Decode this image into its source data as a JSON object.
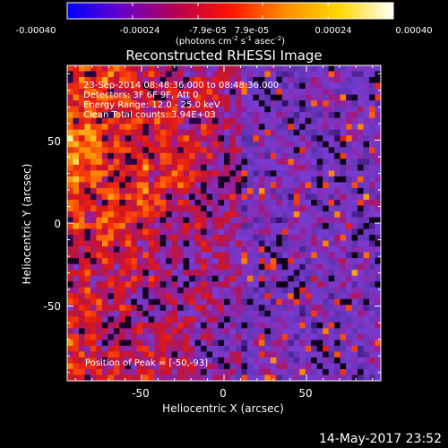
{
  "colorbar": {
    "ticks": [
      "-0.00040",
      "-0.00024",
      "-7.9e-05",
      "7.9e-05",
      "0.00024",
      "0.00040"
    ],
    "tick_values": [
      -0.0004,
      -0.00024,
      -7.9e-05,
      7.9e-05,
      0.00024,
      0.0004
    ],
    "range": [
      -0.0004,
      0.0004
    ],
    "units_prefix": "(photons cm",
    "units_sup1": "-2",
    "units_mid": " s",
    "units_sup2": "-1",
    "units_mid2": " asec",
    "units_sup3": "-2",
    "units_suffix": ")",
    "stops": [
      "#0000ff",
      "#6a00c8",
      "#b40050",
      "#ff1400",
      "#ff8c00",
      "#ffd700",
      "#ffffff"
    ]
  },
  "plot": {
    "title": "Reconstructed RHESSI Image",
    "annotations": [
      "23-Sep-2014 08:48:36.000 to 08:48:36.000",
      "Detectors: 3F 6F 9F, Att 0",
      "Energy Range: 12.0 - 25.0 keV",
      "Clean    Total counts: 3.94E+03"
    ],
    "peak_label": "Position of Peak = [-50,-93]"
  },
  "chart_data": {
    "type": "heatmap",
    "title": "Reconstructed RHESSI Image",
    "xlabel": "Heliocentric X (arcsec)",
    "ylabel": "Heliocentric Y (arcsec)",
    "xlim": [
      -95,
      95
    ],
    "ylim": [
      -95,
      95
    ],
    "xticks": [
      -50,
      0,
      50
    ],
    "yticks": [
      -50,
      0,
      50
    ],
    "zlim": [
      -0.0004,
      0.0004
    ],
    "peak": [
      -50,
      -93
    ],
    "grid": "off"
  },
  "footer": {
    "timestamp": "14-May-2017 23:52"
  }
}
